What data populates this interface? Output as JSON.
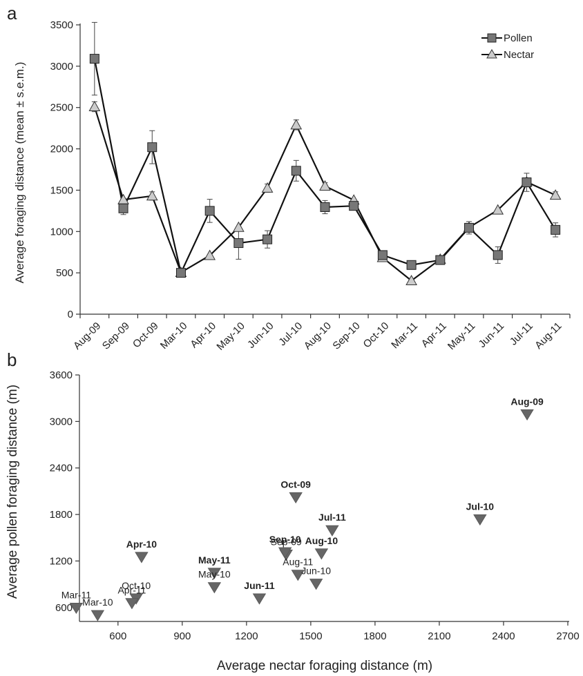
{
  "chart_data": [
    {
      "panel": "a",
      "type": "line",
      "ylabel": "Average foraging distance (mean ± s.e.m.)",
      "xlabel": "",
      "ylim": [
        0,
        3500
      ],
      "yticks": [
        "0",
        "500",
        "1000",
        "1500",
        "2000",
        "2500",
        "3000",
        "3500"
      ],
      "categories": [
        "Aug-09",
        "Sep-09",
        "Oct-09",
        "Mar-10",
        "Apr-10",
        "May-10",
        "Jun-10",
        "Jul-10",
        "Aug-10",
        "Sep-10",
        "Oct-10",
        "Mar-11",
        "Apr-11",
        "May-11",
        "Jun-11",
        "Jul-11",
        "Aug-11"
      ],
      "legend": "top-right",
      "grid": false,
      "series": [
        {
          "name": "Pollen",
          "marker": "square",
          "color": "#777777",
          "values": [
            3090,
            1280,
            2020,
            500,
            1250,
            860,
            905,
            1735,
            1295,
            1310,
            715,
            595,
            655,
            1045,
            715,
            1595,
            1020
          ],
          "errors": [
            440,
            75,
            200,
            0,
            140,
            195,
            105,
            125,
            80,
            40,
            0,
            0,
            0,
            75,
            100,
            110,
            85
          ]
        },
        {
          "name": "Nectar",
          "marker": "triangle",
          "color": "#cccccc",
          "values": [
            2510,
            1385,
            1430,
            505,
            710,
            1050,
            1525,
            2290,
            1550,
            1380,
            685,
            405,
            665,
            1050,
            1260,
            1600,
            1440
          ],
          "errors": [
            60,
            0,
            50,
            0,
            0,
            0,
            50,
            60,
            40,
            0,
            0,
            0,
            0,
            0,
            0,
            0,
            40
          ]
        }
      ]
    },
    {
      "panel": "b",
      "type": "scatter",
      "xlabel": "Average nectar foraging distance (m)",
      "ylabel": "Average pollen foraging distance (m)",
      "xlim": [
        420,
        2700
      ],
      "ylim": [
        420,
        3600
      ],
      "xticks": [
        "600",
        "900",
        "1200",
        "1500",
        "1800",
        "2100",
        "2400",
        "2700"
      ],
      "yticks": [
        "600",
        "1200",
        "1800",
        "2400",
        "3000",
        "3600"
      ],
      "marker": "inverted-triangle",
      "marker_color": "#666666",
      "points": [
        {
          "label": "Aug-09",
          "x": 2510,
          "y": 3090,
          "bold": true
        },
        {
          "label": "Sep-09",
          "x": 1385,
          "y": 1280,
          "bold": false
        },
        {
          "label": "Oct-09",
          "x": 1430,
          "y": 2020,
          "bold": true
        },
        {
          "label": "Mar-10",
          "x": 505,
          "y": 500,
          "bold": false
        },
        {
          "label": "Apr-10",
          "x": 710,
          "y": 1250,
          "bold": true
        },
        {
          "label": "May-10",
          "x": 1050,
          "y": 860,
          "bold": false
        },
        {
          "label": "Jun-10",
          "x": 1525,
          "y": 905,
          "bold": false
        },
        {
          "label": "Jul-10",
          "x": 2290,
          "y": 1735,
          "bold": true
        },
        {
          "label": "Aug-10",
          "x": 1550,
          "y": 1295,
          "bold": true
        },
        {
          "label": "Sep-10",
          "x": 1380,
          "y": 1310,
          "bold": true
        },
        {
          "label": "Oct-10",
          "x": 685,
          "y": 715,
          "bold": false
        },
        {
          "label": "Mar-11",
          "x": 405,
          "y": 595,
          "bold": false
        },
        {
          "label": "Apr-11",
          "x": 665,
          "y": 655,
          "bold": false
        },
        {
          "label": "May-11",
          "x": 1050,
          "y": 1045,
          "bold": true
        },
        {
          "label": "Jun-11",
          "x": 1260,
          "y": 715,
          "bold": true
        },
        {
          "label": "Jul-11",
          "x": 1600,
          "y": 1595,
          "bold": true
        },
        {
          "label": "Aug-11",
          "x": 1440,
          "y": 1020,
          "bold": false
        }
      ]
    }
  ]
}
